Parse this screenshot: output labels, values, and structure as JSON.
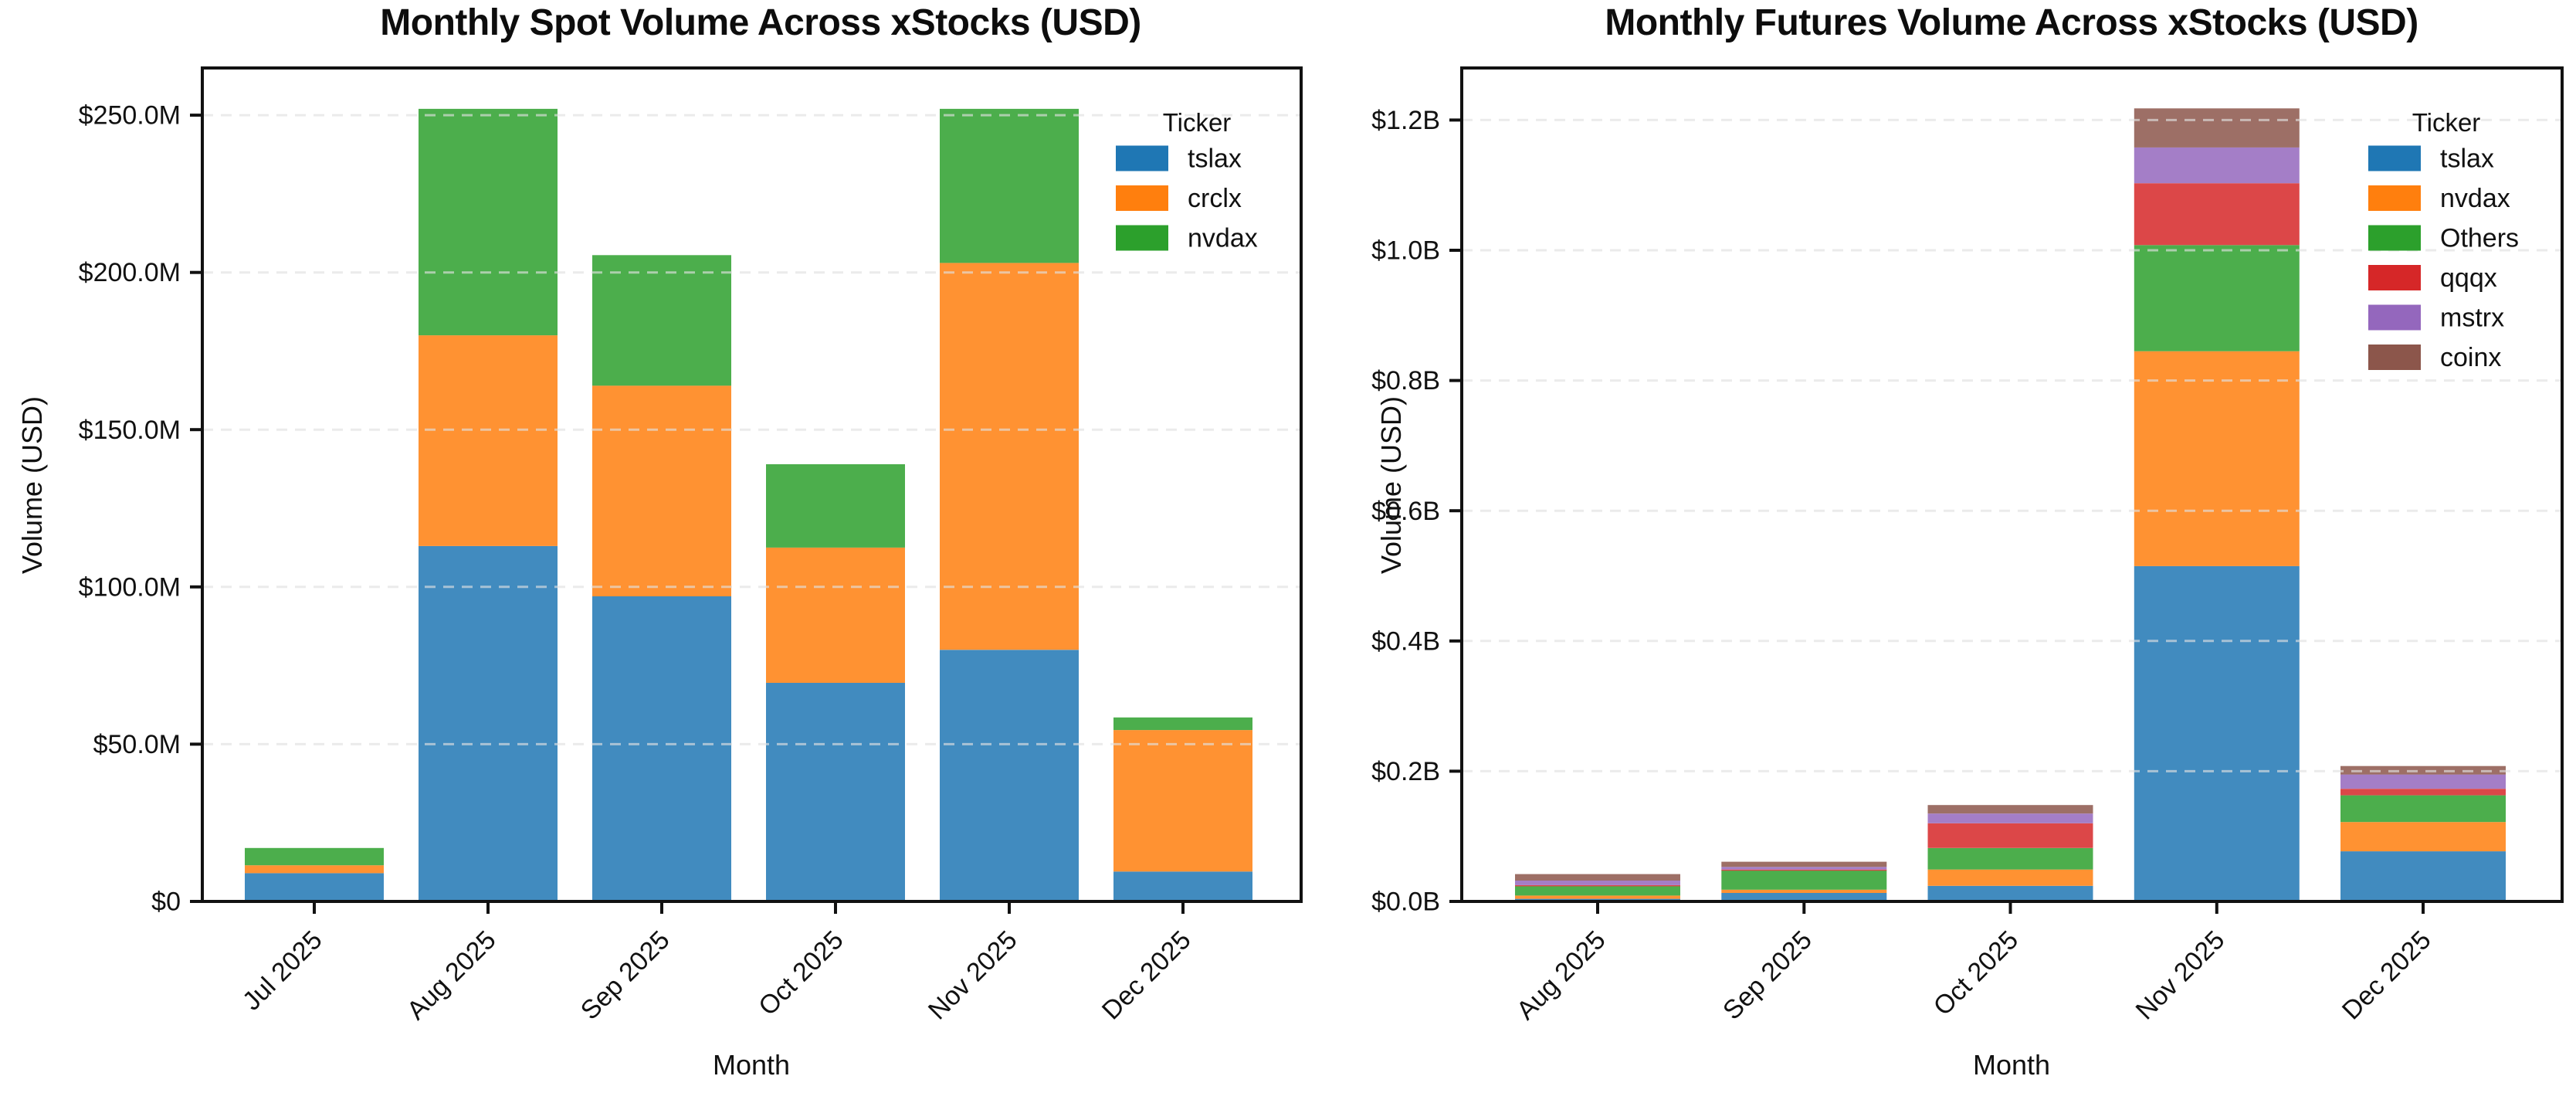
{
  "figure": {
    "background": "#ffffff",
    "text_color": "#111111",
    "grid_color": "#dcdcdc"
  },
  "chart_data": [
    {
      "id": "spot",
      "type": "bar",
      "stacked": true,
      "title": "Monthly Spot Volume Across xStocks (USD)",
      "xlabel": "Month",
      "ylabel": "Volume (USD)",
      "legend_title": "Ticker",
      "legend_position": "upper right",
      "grid": "horizontal dashed",
      "value_unit": "USD millions",
      "categories": [
        "Jul 2025",
        "Aug 2025",
        "Sep 2025",
        "Oct 2025",
        "Nov 2025",
        "Dec 2025"
      ],
      "series": [
        {
          "name": "tslax",
          "bar_color": "#418BBF",
          "legend_color": "#1F77B4",
          "values": [
            9,
            113,
            97,
            69.5,
            80,
            9.5
          ]
        },
        {
          "name": "crclx",
          "bar_color": "#FF9232",
          "legend_color": "#FF7F0E",
          "values": [
            2.5,
            67,
            67,
            43,
            123,
            45
          ]
        },
        {
          "name": "nvdax",
          "bar_color": "#4CAE4C",
          "legend_color": "#2CA02C",
          "values": [
            5.5,
            72,
            41.5,
            26.5,
            49,
            4
          ]
        }
      ],
      "totals": [
        17,
        252,
        205.5,
        139,
        252,
        58.5
      ],
      "ylim": [
        0,
        265
      ],
      "yticks": [
        {
          "value": 0,
          "label": "$0"
        },
        {
          "value": 50,
          "label": "$50.0M"
        },
        {
          "value": 100,
          "label": "$100.0M"
        },
        {
          "value": 150,
          "label": "$150.0M"
        },
        {
          "value": 200,
          "label": "$200.0M"
        },
        {
          "value": 250,
          "label": "$250.0M"
        }
      ]
    },
    {
      "id": "futures",
      "type": "bar",
      "stacked": true,
      "title": "Monthly Futures Volume Across xStocks (USD)",
      "xlabel": "Month",
      "ylabel": "Volume (USD)",
      "legend_title": "Ticker",
      "legend_position": "upper right",
      "grid": "horizontal dashed",
      "value_unit": "USD billions",
      "categories": [
        "Aug 2025",
        "Sep 2025",
        "Oct 2025",
        "Nov 2025",
        "Dec 2025"
      ],
      "series": [
        {
          "name": "tslax",
          "bar_color": "#418BBF",
          "legend_color": "#1F77B4",
          "values": [
            0.004,
            0.013,
            0.024,
            0.515,
            0.077
          ]
        },
        {
          "name": "nvdax",
          "bar_color": "#FF9232",
          "legend_color": "#FF7F0E",
          "values": [
            0.005,
            0.005,
            0.025,
            0.33,
            0.045
          ]
        },
        {
          "name": "Others",
          "bar_color": "#4CAE4C",
          "legend_color": "#2CA02C",
          "values": [
            0.015,
            0.03,
            0.033,
            0.163,
            0.041
          ]
        },
        {
          "name": "qqqx",
          "bar_color": "#DC4748",
          "legend_color": "#D62728",
          "values": [
            0.001,
            0.001,
            0.038,
            0.095,
            0.01
          ]
        },
        {
          "name": "mstrx",
          "bar_color": "#A47EC7",
          "legend_color": "#9467BD",
          "values": [
            0.007,
            0.004,
            0.015,
            0.055,
            0.022
          ]
        },
        {
          "name": "coinx",
          "bar_color": "#9D6F66",
          "legend_color": "#8C564B",
          "values": [
            0.01,
            0.008,
            0.013,
            0.06,
            0.013
          ]
        }
      ],
      "totals": [
        0.042,
        0.061,
        0.148,
        1.218,
        0.208
      ],
      "ylim": [
        0,
        1.28
      ],
      "yticks": [
        {
          "value": 0,
          "label": "$0.0B"
        },
        {
          "value": 0.2,
          "label": "$0.2B"
        },
        {
          "value": 0.4,
          "label": "$0.4B"
        },
        {
          "value": 0.6,
          "label": "$0.6B"
        },
        {
          "value": 0.8,
          "label": "$0.8B"
        },
        {
          "value": 1.0,
          "label": "$1.0B"
        },
        {
          "value": 1.2,
          "label": "$1.2B"
        }
      ]
    }
  ]
}
